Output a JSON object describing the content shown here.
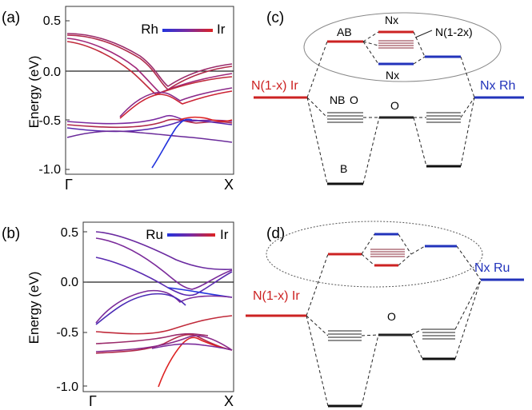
{
  "figure": {
    "panel_a": {
      "label": "(a)",
      "ylabel": "Energy (eV)",
      "yticks": [
        "0.5",
        "0.0",
        "-0.5",
        "-1.0"
      ],
      "xticks": [
        "Γ",
        "X"
      ],
      "legend": {
        "left": "Rh",
        "right": "Ir",
        "color_left": "#2233dd",
        "color_right": "#dd2222"
      }
    },
    "panel_b": {
      "label": "(b)",
      "ylabel": "Energy (eV)",
      "yticks": [
        "0.5",
        "0.0",
        "-0.5",
        "-1.0"
      ],
      "xticks": [
        "Γ",
        "X"
      ],
      "legend": {
        "left": "Ru",
        "right": "Ir",
        "color_left": "#2233dd",
        "color_right": "#dd2222"
      }
    },
    "panel_c": {
      "label": "(c)",
      "left_level": "N(1-x) Ir",
      "right_level": "Nx Rh",
      "ab": "AB",
      "nx_top": "Nx",
      "n12x": "N(1-2x)",
      "nx_bottom": "Nx",
      "nb": "NB",
      "o_left": "O",
      "o_mid": "O",
      "b": "B"
    },
    "panel_d": {
      "label": "(d)",
      "left_level": "N(1-x) Ir",
      "right_level": "Nx Ru",
      "o_mid": "O"
    },
    "colors": {
      "red": "#cc2222",
      "blue": "#2233bb",
      "purple": "#6a2fa0"
    }
  }
}
